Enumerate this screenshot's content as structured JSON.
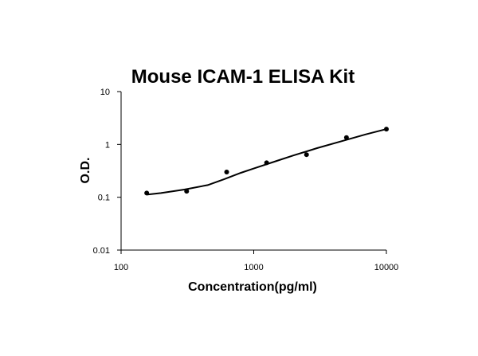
{
  "chart_data": {
    "type": "scatter",
    "title": "Mouse ICAM-1 ELISA Kit",
    "xlabel": "Concentration(pg/ml)",
    "ylabel": "O.D.",
    "xscale": "log",
    "yscale": "log",
    "xlim": [
      100,
      10000
    ],
    "ylim": [
      0.01,
      10
    ],
    "xticks": [
      "100",
      "1000",
      "10000"
    ],
    "yticks": [
      "0.01",
      "0.1",
      "1",
      "10"
    ],
    "grid": false,
    "legend": "none",
    "series": [
      {
        "points": [
          {
            "x": 156,
            "y": 0.12
          },
          {
            "x": 312,
            "y": 0.13
          },
          {
            "x": 625,
            "y": 0.3
          },
          {
            "x": 1250,
            "y": 0.45
          },
          {
            "x": 2500,
            "y": 0.64
          },
          {
            "x": 5000,
            "y": 1.35
          },
          {
            "x": 10000,
            "y": 1.95
          }
        ],
        "fit_curve": [
          {
            "x": 156,
            "y": 0.112
          },
          {
            "x": 200,
            "y": 0.12
          },
          {
            "x": 300,
            "y": 0.14
          },
          {
            "x": 450,
            "y": 0.17
          },
          {
            "x": 600,
            "y": 0.22
          },
          {
            "x": 800,
            "y": 0.29
          },
          {
            "x": 1000,
            "y": 0.35
          },
          {
            "x": 1500,
            "y": 0.49
          },
          {
            "x": 2000,
            "y": 0.62
          },
          {
            "x": 3000,
            "y": 0.85
          },
          {
            "x": 5000,
            "y": 1.22
          },
          {
            "x": 7000,
            "y": 1.55
          },
          {
            "x": 10000,
            "y": 1.95
          }
        ]
      }
    ]
  }
}
